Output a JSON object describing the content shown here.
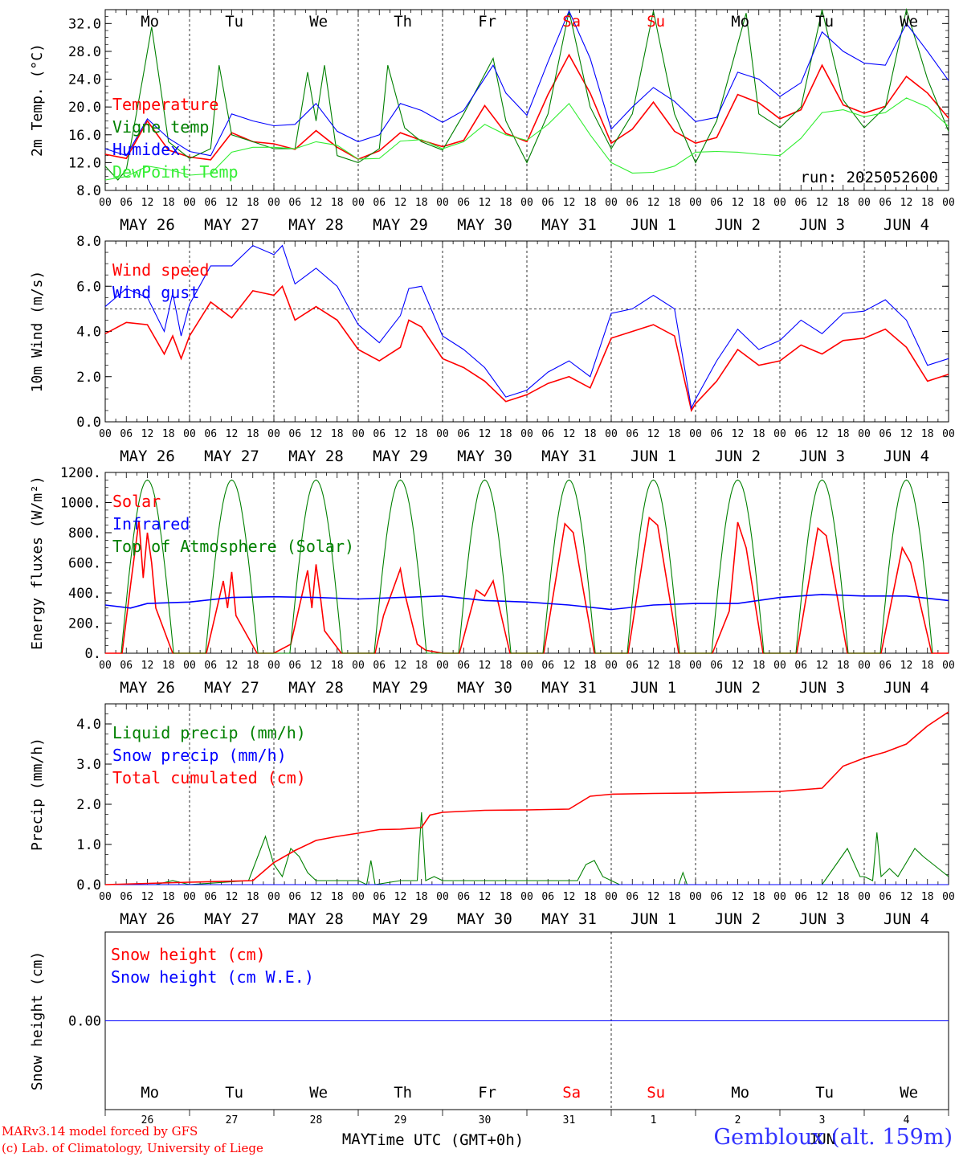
{
  "station": "Gembloux (alt. 159m)",
  "credits": [
    "MARv3.14 model forced by GFS",
    "(c) Lab. of Climatology, University of Liege"
  ],
  "run_label": "run: 2025052600",
  "xaxis": {
    "hour_ticks": [
      "00",
      "06",
      "12",
      "18"
    ],
    "final_tick": "00",
    "dates": [
      "MAY 26",
      "MAY 27",
      "MAY 28",
      "MAY 29",
      "MAY 30",
      "MAY 31",
      "JUN  1",
      "JUN  2",
      "JUN  3",
      "JUN  4"
    ],
    "weekdays": [
      "Mo",
      "Tu",
      "We",
      "Th",
      "Fr",
      "Sa",
      "Su",
      "Mo",
      "Tu",
      "We"
    ],
    "weekend_days": [
      "Sa",
      "Su"
    ],
    "day_numbers": [
      "26",
      "27",
      "28",
      "29",
      "30",
      "31",
      "1",
      "2",
      "3",
      "4"
    ],
    "month_labels": [
      "MAY",
      "JUN"
    ],
    "title": "Time UTC (GMT+0h)"
  },
  "colors": {
    "red": "#ff0000",
    "darkgreen": "#008000",
    "blue": "#0000ff",
    "lightgreen": "#33ee33",
    "axis": "#000000"
  },
  "chart_data": [
    {
      "type": "line",
      "ylabel": "2m Temp. (°C)",
      "ylim": [
        8,
        34
      ],
      "yticks": [
        "8.0",
        "12.0",
        "16.0",
        "20.0",
        "24.0",
        "28.0",
        "32.0"
      ],
      "ytick_values": [
        8,
        12,
        16,
        20,
        24,
        28,
        32
      ],
      "x_unit": "day index (0 = MAY 26 00 UTC)",
      "series": [
        {
          "name": "Temperature",
          "color": "#ff0000",
          "x": [
            0,
            0.25,
            0.5,
            0.75,
            1,
            1.25,
            1.5,
            1.75,
            2,
            2.25,
            2.5,
            2.75,
            3,
            3.25,
            3.5,
            3.75,
            4,
            4.25,
            4.5,
            4.75,
            5,
            5.25,
            5.5,
            5.75,
            6,
            6.25,
            6.5,
            6.75,
            7,
            7.25,
            7.5,
            7.75,
            8,
            8.25,
            8.5,
            8.75,
            9,
            9.25,
            9.5,
            9.75,
            10
          ],
          "y": [
            13.2,
            12.6,
            18,
            13.8,
            12.8,
            12.4,
            16.3,
            15,
            14.7,
            13.9,
            16.6,
            14.2,
            12.5,
            13.7,
            16.3,
            15.2,
            14.3,
            15.2,
            20.2,
            16.2,
            15,
            21.8,
            27.5,
            22,
            14.8,
            16.8,
            20.7,
            16.5,
            14.8,
            15.6,
            21.8,
            20.6,
            18.3,
            19.6,
            26,
            20.3,
            19.1,
            20.1,
            24.4,
            22,
            18.4
          ]
        },
        {
          "name": "Vigne temp",
          "color": "#008000",
          "x": [
            0,
            0.15,
            0.25,
            0.45,
            0.55,
            0.75,
            1,
            1.25,
            1.35,
            1.5,
            1.75,
            2,
            2.25,
            2.4,
            2.5,
            2.6,
            2.75,
            3,
            3.25,
            3.35,
            3.55,
            3.75,
            4,
            4.25,
            4.6,
            4.75,
            5,
            5.25,
            5.5,
            5.75,
            6,
            6.25,
            6.5,
            6.75,
            7,
            7.25,
            7.6,
            7.75,
            8,
            8.25,
            8.5,
            8.75,
            9,
            9.25,
            9.5,
            9.75,
            10
          ],
          "y": [
            11.5,
            9.5,
            11,
            24.5,
            31.5,
            15,
            12.6,
            14,
            26,
            16,
            15,
            14,
            14,
            25,
            18,
            26,
            13,
            12,
            14,
            26,
            17,
            15,
            13.8,
            19,
            27,
            18,
            12,
            19,
            33.8,
            20,
            14,
            19,
            33.8,
            19,
            12,
            18,
            33.5,
            19,
            17,
            20,
            34,
            21,
            17,
            20,
            34,
            24,
            16.5
          ]
        },
        {
          "name": "Humidex",
          "color": "#0000ff",
          "x": [
            0,
            0.25,
            0.5,
            0.75,
            1,
            1.25,
            1.5,
            1.75,
            2,
            2.25,
            2.5,
            2.75,
            3,
            3.25,
            3.5,
            3.75,
            4,
            4.25,
            4.6,
            4.75,
            5,
            5.25,
            5.5,
            5.75,
            6,
            6.25,
            6.5,
            6.75,
            7,
            7.25,
            7.5,
            7.75,
            8,
            8.25,
            8.5,
            8.75,
            9,
            9.25,
            9.5,
            9.75,
            10
          ],
          "y": [
            14,
            13,
            18.3,
            15.5,
            13.6,
            13,
            19,
            18,
            17.3,
            17.5,
            20.5,
            16.5,
            15,
            16,
            20.5,
            19.5,
            17.8,
            19.5,
            26,
            22,
            18.8,
            26.5,
            33.8,
            27,
            16.8,
            20,
            22.8,
            20.8,
            17.9,
            18.5,
            25,
            24,
            21.5,
            23.5,
            30.8,
            28,
            26.3,
            26,
            32,
            28,
            23.8
          ]
        },
        {
          "name": "DewPoint Temp",
          "color": "#33ee33",
          "x": [
            0,
            0.25,
            0.5,
            0.75,
            1,
            1.25,
            1.5,
            1.75,
            2,
            2.25,
            2.5,
            2.75,
            3,
            3.25,
            3.5,
            3.75,
            4,
            4.25,
            4.5,
            4.75,
            5,
            5.25,
            5.5,
            5.75,
            6,
            6.25,
            6.5,
            6.75,
            7,
            7.25,
            7.5,
            7.75,
            8,
            8.25,
            8.5,
            8.75,
            9,
            9.25,
            9.5,
            9.75,
            10
          ],
          "y": [
            9.5,
            10,
            11.5,
            11,
            10.2,
            10.4,
            13.5,
            14.2,
            14.2,
            14,
            15,
            14.5,
            12.5,
            12.6,
            15.1,
            15.3,
            14,
            15,
            17.5,
            16,
            15.2,
            17.5,
            20.5,
            16,
            12,
            10.5,
            10.6,
            11.5,
            13.5,
            13.6,
            13.5,
            13.2,
            13,
            15.5,
            19.2,
            19.6,
            18.6,
            19.2,
            21.3,
            20,
            17.2
          ]
        }
      ]
    },
    {
      "type": "line",
      "ylabel": "10m Wind (m/s)",
      "ylim": [
        0,
        8
      ],
      "yticks": [
        "0.0",
        "2.0",
        "4.0",
        "6.0",
        "8.0"
      ],
      "ytick_values": [
        0,
        2,
        4,
        6,
        8
      ],
      "reference_line": 5,
      "series": [
        {
          "name": "Wind speed",
          "color": "#ff0000",
          "x": [
            0,
            0.25,
            0.5,
            0.7,
            0.8,
            0.9,
            1,
            1.25,
            1.5,
            1.75,
            2,
            2.1,
            2.25,
            2.5,
            2.75,
            3,
            3.25,
            3.5,
            3.6,
            3.75,
            4,
            4.25,
            4.5,
            4.75,
            5,
            5.25,
            5.5,
            5.75,
            6,
            6.25,
            6.5,
            6.75,
            6.95,
            7,
            7.25,
            7.5,
            7.75,
            8,
            8.25,
            8.5,
            8.75,
            9,
            9.25,
            9.5,
            9.75,
            10
          ],
          "y": [
            3.9,
            4.4,
            4.3,
            3,
            3.8,
            2.8,
            3.8,
            5.3,
            4.6,
            5.8,
            5.6,
            6,
            4.5,
            5.1,
            4.5,
            3.2,
            2.7,
            3.3,
            4.5,
            4.2,
            2.8,
            2.4,
            1.8,
            0.9,
            1.2,
            1.7,
            2,
            1.5,
            3.7,
            4,
            4.3,
            3.8,
            0.5,
            0.8,
            1.8,
            3.2,
            2.5,
            2.7,
            3.4,
            3,
            3.6,
            3.7,
            4.1,
            3.3,
            1.8,
            2.1
          ]
        },
        {
          "name": "Wind gust",
          "color": "#0000ff",
          "x": [
            0,
            0.25,
            0.5,
            0.7,
            0.8,
            0.9,
            1,
            1.25,
            1.5,
            1.75,
            2,
            2.1,
            2.25,
            2.5,
            2.75,
            3,
            3.25,
            3.5,
            3.6,
            3.75,
            4,
            4.25,
            4.5,
            4.75,
            5,
            5.25,
            5.5,
            5.75,
            6,
            6.25,
            6.5,
            6.75,
            6.95,
            7,
            7.25,
            7.5,
            7.75,
            8,
            8.25,
            8.5,
            8.75,
            9,
            9.25,
            9.5,
            9.75,
            10
          ],
          "y": [
            5.1,
            5.9,
            5.5,
            4,
            5.7,
            3.8,
            5.2,
            6.9,
            6.9,
            7.8,
            7.4,
            7.8,
            6.1,
            6.8,
            6,
            4.3,
            3.5,
            4.7,
            5.9,
            6,
            3.8,
            3.2,
            2.4,
            1.1,
            1.4,
            2.2,
            2.7,
            2,
            4.8,
            5,
            5.6,
            5,
            0.6,
            1,
            2.7,
            4.1,
            3.2,
            3.6,
            4.5,
            3.9,
            4.8,
            4.9,
            5.4,
            4.5,
            2.5,
            2.8
          ]
        }
      ]
    },
    {
      "type": "line",
      "ylabel": "Energy fluxes (W/m²)",
      "ylim": [
        0,
        1200
      ],
      "yticks": [
        "0.",
        "200.",
        "400.",
        "600.",
        "800.",
        "1000.",
        "1200."
      ],
      "ytick_values": [
        0,
        200,
        400,
        600,
        800,
        1000,
        1200
      ],
      "series": [
        {
          "name": "Solar",
          "color": "#ff0000",
          "daily_peaks": [
            880,
            540,
            590,
            560,
            480,
            860,
            900,
            880,
            830,
            700
          ],
          "x": [
            0,
            0.2,
            0.3,
            0.4,
            0.45,
            0.5,
            0.55,
            0.6,
            0.8,
            1,
            1.2,
            1.4,
            1.45,
            1.5,
            1.55,
            1.6,
            1.8,
            2,
            2.2,
            2.4,
            2.45,
            2.5,
            2.55,
            2.6,
            2.8,
            3,
            3.2,
            3.3,
            3.5,
            3.55,
            3.7,
            3.8,
            4,
            4.2,
            4.4,
            4.5,
            4.6,
            4.8,
            5,
            5.2,
            5.45,
            5.55,
            5.8,
            6,
            6.2,
            6.45,
            6.55,
            6.8,
            7,
            7.2,
            7.4,
            7.5,
            7.6,
            7.8,
            8,
            8.2,
            8.45,
            8.55,
            8.8,
            9,
            9.2,
            9.45,
            9.55,
            9.8,
            10
          ],
          "y": [
            0,
            0,
            450,
            880,
            500,
            800,
            600,
            300,
            0,
            0,
            0,
            480,
            300,
            540,
            250,
            200,
            0,
            0,
            60,
            550,
            300,
            590,
            380,
            150,
            0,
            0,
            0,
            250,
            560,
            400,
            60,
            20,
            0,
            0,
            420,
            380,
            480,
            0,
            0,
            0,
            860,
            800,
            0,
            0,
            0,
            900,
            850,
            0,
            0,
            0,
            280,
            870,
            700,
            0,
            0,
            0,
            830,
            780,
            0,
            0,
            0,
            700,
            600,
            0,
            0
          ]
        },
        {
          "name": "Infrared",
          "color": "#0000ff",
          "x": [
            0,
            0.3,
            0.5,
            1,
            1.5,
            2,
            2.5,
            3,
            3.5,
            4,
            4.5,
            5,
            5.5,
            6,
            6.5,
            7,
            7.5,
            8,
            8.5,
            9,
            9.5,
            10
          ],
          "y": [
            320,
            300,
            330,
            340,
            370,
            375,
            370,
            360,
            370,
            380,
            350,
            340,
            320,
            290,
            320,
            330,
            330,
            370,
            390,
            380,
            380,
            350
          ]
        },
        {
          "name": "Top of Atmosphere (Solar)",
          "color": "#008000",
          "daily_peak": 1150,
          "daily_x": [
            0.19,
            0.5,
            0.81
          ]
        }
      ]
    },
    {
      "type": "line",
      "ylabel": "Precip (mm/h)",
      "ylim": [
        0,
        4.5
      ],
      "yticks": [
        "0.0",
        "1.0",
        "2.0",
        "3.0",
        "4.0"
      ],
      "ytick_values": [
        0,
        1,
        2,
        3,
        4
      ],
      "series": [
        {
          "name": "Liquid precip (mm/h)",
          "color": "#008000",
          "x": [
            0,
            0.6,
            0.8,
            1,
            1.7,
            1.9,
            2,
            2.1,
            2.2,
            2.3,
            2.4,
            2.5,
            3,
            3.1,
            3.15,
            3.2,
            3.5,
            3.7,
            3.75,
            3.8,
            3.9,
            4,
            5.6,
            5.7,
            5.8,
            5.9,
            6.1,
            6.8,
            6.85,
            6.9,
            8.5,
            8.7,
            8.8,
            8.95,
            9,
            9.1,
            9.15,
            9.2,
            9.3,
            9.4,
            9.6,
            9.7,
            10
          ],
          "y": [
            0,
            0,
            0.1,
            0,
            0.1,
            1.2,
            0.5,
            0.2,
            0.9,
            0.7,
            0.3,
            0.1,
            0.1,
            0,
            0.6,
            0,
            0.1,
            0.1,
            1.8,
            0.1,
            0.2,
            0.1,
            0.1,
            0.5,
            0.6,
            0.2,
            0,
            0,
            0.3,
            0,
            0,
            0.6,
            0.9,
            0.2,
            0.2,
            0.1,
            1.3,
            0.2,
            0.4,
            0.2,
            0.9,
            0.7,
            0.2
          ]
        },
        {
          "name": "Snow precip (mm/h)",
          "color": "#0000ff",
          "x": [
            0,
            10
          ],
          "y": [
            0,
            0
          ]
        },
        {
          "name": "Total cumulated (cm)",
          "color": "#ff0000",
          "x": [
            0,
            0.5,
            1,
            1.75,
            2,
            2.25,
            2.5,
            2.75,
            3,
            3.25,
            3.5,
            3.75,
            3.85,
            4,
            4.5,
            5,
            5.5,
            5.75,
            6,
            6.5,
            7,
            7.5,
            8,
            8.5,
            8.75,
            9,
            9.25,
            9.5,
            9.75,
            10
          ],
          "y": [
            0,
            0.03,
            0.06,
            0.1,
            0.55,
            0.85,
            1.1,
            1.2,
            1.28,
            1.37,
            1.38,
            1.42,
            1.73,
            1.8,
            1.85,
            1.86,
            1.88,
            2.2,
            2.25,
            2.27,
            2.28,
            2.3,
            2.32,
            2.4,
            2.95,
            3.15,
            3.3,
            3.5,
            3.95,
            4.3
          ]
        }
      ]
    },
    {
      "type": "line",
      "ylabel": "Snow height (cm)",
      "ylim": [
        -1,
        1
      ],
      "yticks": [
        "0.00"
      ],
      "ytick_values": [
        0
      ],
      "series": [
        {
          "name": "Snow height (cm)",
          "color": "#ff0000",
          "x": [
            0,
            10
          ],
          "y": [
            0,
            0
          ]
        },
        {
          "name": "Snow height (cm W.E.)",
          "color": "#0000ff",
          "x": [
            0,
            10
          ],
          "y": [
            0,
            0
          ]
        }
      ]
    }
  ]
}
